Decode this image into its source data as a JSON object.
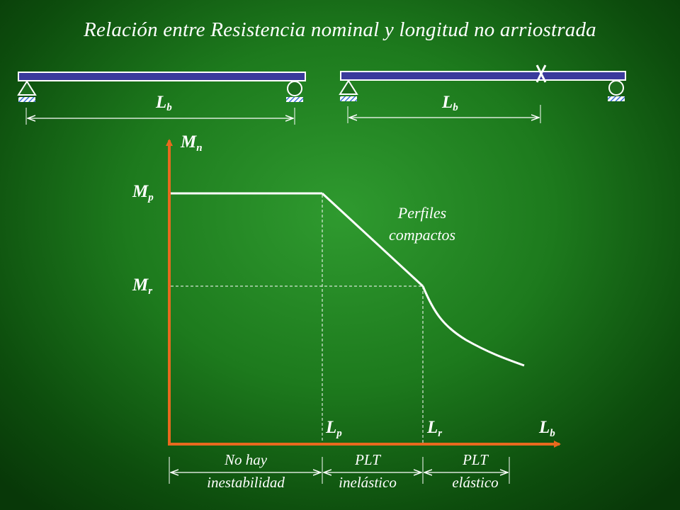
{
  "title": "Relación entre Resistencia nominal y longitud no arriostrada",
  "beams": [
    {
      "label_main": "L",
      "label_sub": "b",
      "has_brace_mark": false
    },
    {
      "label_main": "L",
      "label_sub": "b",
      "has_brace_mark": true
    }
  ],
  "axes": {
    "y_main": "M",
    "y_sub": "n",
    "x_main": "L",
    "x_sub": "b"
  },
  "y_levels": {
    "mp_main": "M",
    "mp_sub": "p",
    "mr_main": "M",
    "mr_sub": "r"
  },
  "x_marks": {
    "lp_main": "L",
    "lp_sub": "p",
    "lr_main": "L",
    "lr_sub": "r"
  },
  "curve_note": {
    "line1": "Perfiles",
    "line2": "compactos"
  },
  "regions": [
    {
      "line1": "No hay",
      "line2": "inestabilidad"
    },
    {
      "line1": "PLT",
      "line2": "inelástico"
    },
    {
      "line1": "PLT",
      "line2": "elástico"
    }
  ],
  "colors": {
    "axis": "#e8691e",
    "beam": "#3a3a9c",
    "support_hatch": "#3b6fd8",
    "line": "#ffffff"
  }
}
